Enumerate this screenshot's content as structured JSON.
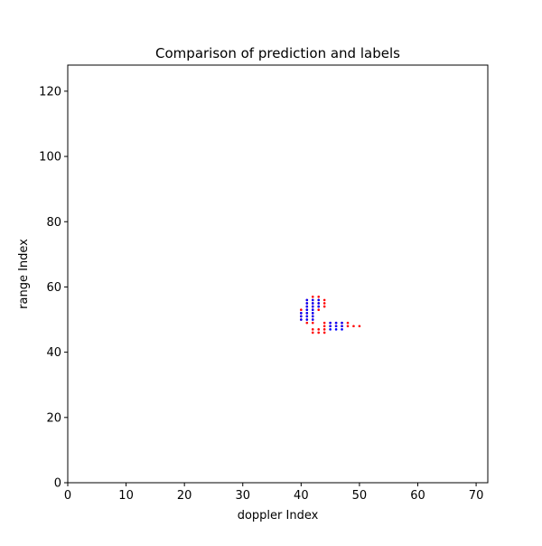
{
  "chart_data": {
    "type": "scatter",
    "title": "Comparison of prediction and labels",
    "xlabel": "doppler Index",
    "ylabel": "range Index",
    "xlim": [
      0,
      72
    ],
    "ylim": [
      0,
      128
    ],
    "xticks": [
      0,
      10,
      20,
      30,
      40,
      50,
      60,
      70
    ],
    "yticks": [
      0,
      20,
      40,
      60,
      80,
      100,
      120
    ],
    "grid": false,
    "legend": "none",
    "series": [
      {
        "color": "#ff0000",
        "points": [
          [
            40,
            50
          ],
          [
            40,
            51
          ],
          [
            40,
            52
          ],
          [
            40,
            53
          ],
          [
            41,
            49
          ],
          [
            41,
            50
          ],
          [
            41,
            51
          ],
          [
            41,
            52
          ],
          [
            41,
            53
          ],
          [
            41,
            54
          ],
          [
            41,
            55
          ],
          [
            41,
            56
          ],
          [
            42,
            46
          ],
          [
            42,
            47
          ],
          [
            42,
            49
          ],
          [
            42,
            50
          ],
          [
            42,
            51
          ],
          [
            42,
            52
          ],
          [
            42,
            53
          ],
          [
            42,
            54
          ],
          [
            42,
            55
          ],
          [
            42,
            56
          ],
          [
            42,
            57
          ],
          [
            43,
            46
          ],
          [
            43,
            47
          ],
          [
            43,
            53
          ],
          [
            43,
            54
          ],
          [
            43,
            55
          ],
          [
            43,
            56
          ],
          [
            43,
            57
          ],
          [
            44,
            46
          ],
          [
            44,
            47
          ],
          [
            44,
            48
          ],
          [
            44,
            49
          ],
          [
            44,
            54
          ],
          [
            44,
            55
          ],
          [
            44,
            56
          ],
          [
            45,
            48
          ],
          [
            45,
            49
          ],
          [
            46,
            48
          ],
          [
            46,
            49
          ],
          [
            47,
            48
          ],
          [
            47,
            49
          ],
          [
            48,
            48
          ],
          [
            48,
            49
          ],
          [
            49,
            48
          ],
          [
            50,
            48
          ]
        ]
      },
      {
        "color": "#0000ff",
        "points": [
          [
            40,
            50
          ],
          [
            40,
            51
          ],
          [
            40,
            52
          ],
          [
            41,
            50
          ],
          [
            41,
            51
          ],
          [
            41,
            52
          ],
          [
            41,
            53
          ],
          [
            41,
            54
          ],
          [
            41,
            55
          ],
          [
            41,
            56
          ],
          [
            42,
            50
          ],
          [
            42,
            51
          ],
          [
            42,
            52
          ],
          [
            42,
            53
          ],
          [
            42,
            54
          ],
          [
            42,
            55
          ],
          [
            42,
            56
          ],
          [
            43,
            54
          ],
          [
            43,
            55
          ],
          [
            43,
            56
          ],
          [
            45,
            47
          ],
          [
            45,
            48
          ],
          [
            45,
            49
          ],
          [
            46,
            47
          ],
          [
            46,
            48
          ],
          [
            46,
            49
          ],
          [
            47,
            47
          ],
          [
            47,
            48
          ],
          [
            47,
            49
          ]
        ]
      }
    ]
  }
}
